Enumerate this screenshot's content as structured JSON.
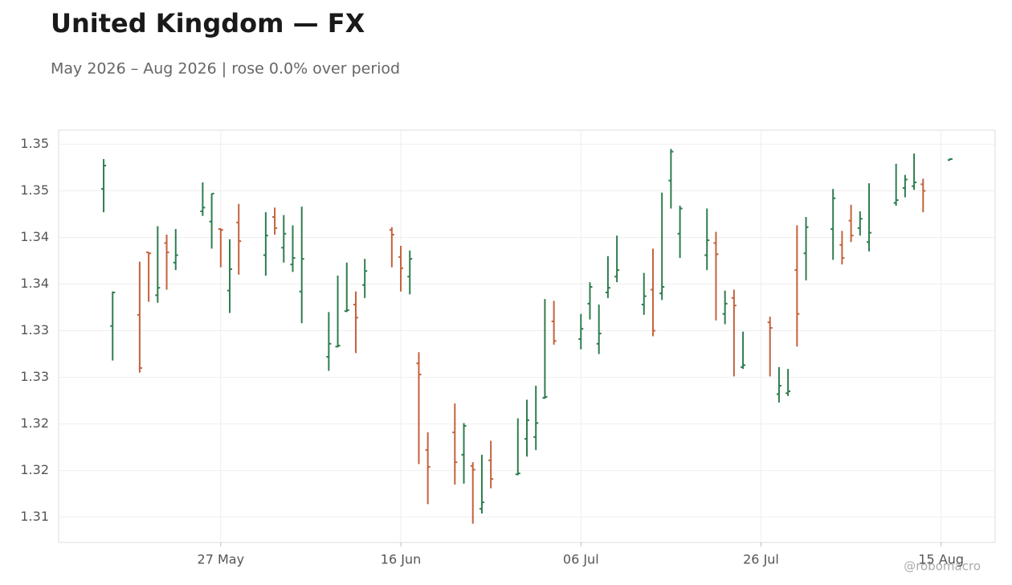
{
  "chart_data": {
    "type": "ohlc",
    "title": "United Kingdom — FX",
    "subtitle": "May 2026 – Aug 2026 | rose 0.0% over period",
    "watermark": "@robomacro",
    "up_color": "#2e7d4f",
    "down_color": "#c4623d",
    "grid": true,
    "xlim": [
      "2026-05-09",
      "2026-08-21"
    ],
    "xticks": [
      {
        "value": "2026-05-27",
        "label": "27 May"
      },
      {
        "value": "2026-06-16",
        "label": "16 Jun"
      },
      {
        "value": "2026-07-06",
        "label": "06 Jul"
      },
      {
        "value": "2026-07-26",
        "label": "26 Jul"
      },
      {
        "value": "2026-08-15",
        "label": "15 Aug"
      }
    ],
    "ylim": [
      1.3073,
      1.3515
    ],
    "yticks": [
      1.31,
      {
        "value": 1.315,
        "label": "1.32"
      },
      1.32,
      {
        "value": 1.325,
        "label": "1.33"
      },
      1.33,
      {
        "value": 1.335,
        "label": "1.34"
      },
      1.34,
      {
        "value": 1.345,
        "label": "1.35"
      },
      1.35
    ],
    "x": [
      "2026-05-14",
      "2026-05-15",
      "2026-05-18",
      "2026-05-19",
      "2026-05-20",
      "2026-05-21",
      "2026-05-22",
      "2026-05-25",
      "2026-05-26",
      "2026-05-27",
      "2026-05-28",
      "2026-05-29",
      "2026-06-01",
      "2026-06-02",
      "2026-06-03",
      "2026-06-04",
      "2026-06-05",
      "2026-06-08",
      "2026-06-09",
      "2026-06-10",
      "2026-06-11",
      "2026-06-12",
      "2026-06-15",
      "2026-06-16",
      "2026-06-17",
      "2026-06-18",
      "2026-06-19",
      "2026-06-22",
      "2026-06-23",
      "2026-06-24",
      "2026-06-25",
      "2026-06-26",
      "2026-06-29",
      "2026-06-30",
      "2026-07-01",
      "2026-07-02",
      "2026-07-03",
      "2026-07-06",
      "2026-07-07",
      "2026-07-08",
      "2026-07-09",
      "2026-07-10",
      "2026-07-13",
      "2026-07-14",
      "2026-07-15",
      "2026-07-16",
      "2026-07-17",
      "2026-07-20",
      "2026-07-21",
      "2026-07-22",
      "2026-07-23",
      "2026-07-24",
      "2026-07-27",
      "2026-07-28",
      "2026-07-29",
      "2026-07-30",
      "2026-07-31",
      "2026-08-03",
      "2026-08-04",
      "2026-08-05",
      "2026-08-06",
      "2026-08-07",
      "2026-08-10",
      "2026-08-11",
      "2026-08-12",
      "2026-08-13",
      "2026-08-16"
    ],
    "open": [
      1.3452,
      1.3305,
      1.3317,
      1.3384,
      1.3338,
      1.3394,
      1.3373,
      1.3428,
      1.3417,
      1.3409,
      1.3343,
      1.3416,
      1.3381,
      1.3422,
      1.3389,
      1.3371,
      1.3342,
      1.3272,
      1.3283,
      1.3321,
      1.3328,
      1.3349,
      1.3408,
      1.3379,
      1.3358,
      1.3265,
      1.3172,
      1.3191,
      1.3167,
      1.3155,
      1.3109,
      1.3161,
      1.3146,
      1.3184,
      1.3186,
      1.3228,
      1.331,
      1.3291,
      1.3329,
      1.3286,
      1.3341,
      1.3358,
      1.3328,
      1.3344,
      1.334,
      1.3461,
      1.3404,
      1.3381,
      1.3394,
      1.3318,
      1.3335,
      1.3261,
      1.3309,
      1.3232,
      1.3233,
      1.3365,
      1.3383,
      1.3409,
      1.3392,
      1.3418,
      1.341,
      1.3395,
      1.3437,
      1.3453,
      1.3455,
      1.3457,
      1.3483
    ],
    "high": [
      1.3484,
      1.3342,
      1.3374,
      1.3384,
      1.3412,
      1.3403,
      1.3409,
      1.3459,
      1.3447,
      1.341,
      1.3398,
      1.3436,
      1.3427,
      1.3432,
      1.3424,
      1.3413,
      1.3433,
      1.332,
      1.3359,
      1.3373,
      1.3342,
      1.3377,
      1.3411,
      1.3391,
      1.3386,
      1.3277,
      1.3191,
      1.3222,
      1.3201,
      1.3159,
      1.3167,
      1.3182,
      1.3206,
      1.3226,
      1.3241,
      1.3334,
      1.3332,
      1.3318,
      1.3352,
      1.3328,
      1.338,
      1.3402,
      1.3362,
      1.3388,
      1.3448,
      1.3495,
      1.3434,
      1.3431,
      1.3406,
      1.3343,
      1.3344,
      1.3299,
      1.3315,
      1.3261,
      1.3259,
      1.3413,
      1.3422,
      1.3452,
      1.3407,
      1.3435,
      1.3428,
      1.3458,
      1.3479,
      1.3467,
      1.349,
      1.3463,
      1.3485
    ],
    "low": [
      1.3427,
      1.3268,
      1.3255,
      1.3331,
      1.333,
      1.3344,
      1.3365,
      1.3423,
      1.3388,
      1.3368,
      1.3319,
      1.336,
      1.3359,
      1.3403,
      1.3373,
      1.3363,
      1.3308,
      1.3257,
      1.3282,
      1.332,
      1.3276,
      1.3335,
      1.3368,
      1.3342,
      1.3339,
      1.3157,
      1.3114,
      1.3135,
      1.3136,
      1.3093,
      1.3104,
      1.3131,
      1.3145,
      1.3165,
      1.3172,
      1.3227,
      1.3285,
      1.328,
      1.3312,
      1.3275,
      1.3335,
      1.3352,
      1.3317,
      1.3294,
      1.3333,
      1.3431,
      1.3378,
      1.3365,
      1.3311,
      1.3307,
      1.3251,
      1.3259,
      1.3251,
      1.3223,
      1.323,
      1.3283,
      1.3354,
      1.3376,
      1.3371,
      1.3395,
      1.3402,
      1.3385,
      1.3434,
      1.3443,
      1.3451,
      1.3427,
      1.3483
    ],
    "close": [
      1.3477,
      1.3341,
      1.326,
      1.3383,
      1.3346,
      1.3384,
      1.3381,
      1.3432,
      1.3447,
      1.3408,
      1.3366,
      1.3396,
      1.3402,
      1.341,
      1.3404,
      1.3378,
      1.3377,
      1.3286,
      1.3284,
      1.3322,
      1.3314,
      1.3364,
      1.3403,
      1.3367,
      1.3377,
      1.3253,
      1.3154,
      1.3159,
      1.3198,
      1.3151,
      1.3116,
      1.3141,
      1.3147,
      1.3204,
      1.3201,
      1.3229,
      1.3289,
      1.3302,
      1.3347,
      1.3297,
      1.3346,
      1.3365,
      1.3337,
      1.33,
      1.3347,
      1.3492,
      1.3431,
      1.3397,
      1.3382,
      1.3329,
      1.3327,
      1.3263,
      1.3303,
      1.3241,
      1.3235,
      1.3318,
      1.3411,
      1.3442,
      1.3378,
      1.3402,
      1.342,
      1.3405,
      1.344,
      1.3462,
      1.3459,
      1.345,
      1.3484
    ]
  }
}
